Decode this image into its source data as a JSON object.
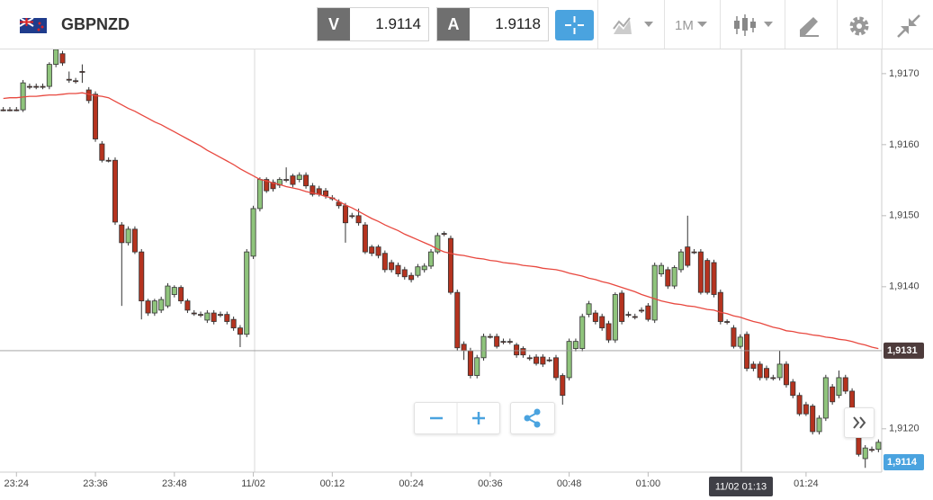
{
  "toolbar": {
    "symbol": "GBPNZD",
    "sell": {
      "label": "V",
      "price": "1.9114"
    },
    "buy": {
      "label": "A",
      "price": "1.9118"
    },
    "timeframe": "1M"
  },
  "chart_data": {
    "type": "candlestick",
    "categories": [
      null,
      null,
      "23:24",
      null,
      null,
      null,
      null,
      null,
      null,
      null,
      null,
      null,
      null,
      null,
      "23:36",
      null,
      null,
      null,
      null,
      null,
      null,
      null,
      null,
      null,
      null,
      null,
      "23:48",
      null,
      null,
      null,
      null,
      null,
      null,
      null,
      null,
      null,
      null,
      null,
      "11/02",
      null,
      null,
      null,
      null,
      null,
      null,
      null,
      null,
      null,
      null,
      null,
      "00:12",
      null,
      null,
      null,
      null,
      null,
      null,
      null,
      null,
      null,
      null,
      null,
      "00:24",
      null,
      null,
      null,
      null,
      null,
      null,
      null,
      null,
      null,
      null,
      null,
      "00:36",
      null,
      null,
      null,
      null,
      null,
      null,
      null,
      null,
      null,
      null,
      null,
      "00:48",
      null,
      null,
      null,
      null,
      null,
      null,
      null,
      null,
      null,
      null,
      null,
      "01:00",
      null,
      null,
      null,
      null,
      null,
      null,
      null,
      null,
      null,
      null,
      null,
      null,
      null,
      null,
      null,
      null,
      null,
      null,
      null,
      null,
      null,
      null,
      null,
      "01:24",
      null,
      null,
      null,
      null,
      null,
      null,
      null,
      null,
      null,
      null,
      null
    ],
    "open": [
      1.91649,
      1.91649,
      1.91649,
      1.91649,
      1.91682,
      1.91682,
      1.91682,
      1.91682,
      1.91713,
      1.91728,
      1.91692,
      1.9169,
      1.91703,
      1.91677,
      1.91671,
      1.91601,
      1.91578,
      1.91578,
      1.91487,
      1.91462,
      1.91481,
      1.91449,
      1.9138,
      1.91363,
      1.91367,
      1.91373,
      1.91389,
      1.91399,
      1.9138,
      1.91363,
      1.91361,
      1.91353,
      1.91363,
      1.91361,
      1.91361,
      1.91354,
      1.91342,
      1.91333,
      1.91443,
      1.9151,
      1.91551,
      1.91547,
      1.91543,
      1.91551,
      1.91556,
      1.91551,
      1.91557,
      1.91542,
      1.91538,
      1.91535,
      1.91525,
      1.91519,
      1.91514,
      1.915,
      1.915,
      1.91487,
      1.91456,
      1.91456,
      1.91447,
      1.91434,
      1.9143,
      1.91424,
      1.91416,
      1.91416,
      1.91424,
      1.91429,
      1.91449,
      1.91475,
      1.91468,
      1.91392,
      1.91319,
      1.9131,
      1.91275,
      1.913,
      1.9133,
      1.9133,
      1.91323,
      1.91323,
      1.91318,
      1.91313,
      1.913,
      1.91301,
      1.91301,
      1.91297,
      1.913,
      1.91275,
      1.91272,
      1.91313,
      1.91313,
      1.91361,
      1.91363,
      1.91358,
      1.91348,
      1.91325,
      1.91391,
      1.91361,
      1.91358,
      1.91367,
      1.91373,
      1.91353,
      1.91418,
      1.91424,
      1.91401,
      1.91424,
      1.91456,
      1.91449,
      1.91449,
      1.91437,
      1.91434,
      1.91392,
      1.91351,
      1.91342,
      1.91316,
      1.91333,
      1.91291,
      1.91291,
      1.91285,
      1.91272,
      1.91272,
      1.91291,
      1.91266,
      1.91247,
      1.91234,
      1.91232,
      1.91196,
      1.91215,
      1.91259,
      1.91247,
      1.91272,
      1.91253,
      1.91199,
      1.91158,
      1.91171,
      1.91171
    ],
    "high": [
      1.91653,
      1.91653,
      1.91653,
      1.91691,
      1.91686,
      1.91686,
      1.91686,
      1.91716,
      1.91738,
      1.91732,
      1.91703,
      1.91694,
      1.91713,
      1.91681,
      1.91675,
      1.91605,
      1.91582,
      1.91582,
      1.91491,
      1.91485,
      1.91485,
      1.91453,
      1.91383,
      1.91383,
      1.91386,
      1.91405,
      1.91402,
      1.91402,
      1.91383,
      1.91367,
      1.91365,
      1.91367,
      1.91367,
      1.91365,
      1.91365,
      1.91358,
      1.91346,
      1.91453,
      1.91514,
      1.91554,
      1.91554,
      1.91551,
      1.91554,
      1.91568,
      1.91559,
      1.91561,
      1.91561,
      1.91546,
      1.91542,
      1.91539,
      1.91529,
      1.91523,
      1.91518,
      1.91504,
      1.9151,
      1.91491,
      1.91459,
      1.91459,
      1.91451,
      1.91438,
      1.91434,
      1.91428,
      1.9142,
      1.91432,
      1.91433,
      1.91453,
      1.91476,
      1.91478,
      1.91472,
      1.91396,
      1.91323,
      1.91314,
      1.91304,
      1.91334,
      1.91334,
      1.91334,
      1.91327,
      1.91327,
      1.91321,
      1.91316,
      1.91304,
      1.91305,
      1.91305,
      1.91301,
      1.91304,
      1.91278,
      1.91327,
      1.91327,
      1.91362,
      1.9138,
      1.91367,
      1.91362,
      1.91352,
      1.91392,
      1.91395,
      1.91365,
      1.91362,
      1.91371,
      1.91377,
      1.91434,
      1.91434,
      1.91428,
      1.9143,
      1.91453,
      1.915,
      1.91453,
      1.91453,
      1.9144,
      1.91438,
      1.91396,
      1.91354,
      1.91346,
      1.91333,
      1.91337,
      1.91295,
      1.91295,
      1.91289,
      1.91276,
      1.9131,
      1.91295,
      1.9127,
      1.91251,
      1.91238,
      1.91235,
      1.91219,
      1.91276,
      1.91263,
      1.91282,
      1.91276,
      1.91257,
      1.91202,
      1.91177,
      1.91175,
      1.91185
    ],
    "low": [
      1.91647,
      1.91647,
      1.91647,
      1.91646,
      1.91678,
      1.91678,
      1.91678,
      1.91678,
      1.91709,
      1.91711,
      1.91687,
      1.91686,
      1.91687,
      1.91658,
      1.91604,
      1.91575,
      1.91575,
      1.91487,
      1.91373,
      1.91458,
      1.91446,
      1.91354,
      1.91359,
      1.91359,
      1.91363,
      1.9137,
      1.91385,
      1.91376,
      1.91363,
      1.91359,
      1.91357,
      1.91349,
      1.91347,
      1.91357,
      1.91347,
      1.91338,
      1.91315,
      1.91329,
      1.91439,
      1.91506,
      1.91532,
      1.91534,
      1.91539,
      1.91547,
      1.9154,
      1.91547,
      1.91538,
      1.91527,
      1.91527,
      1.91524,
      1.91521,
      1.9151,
      1.91462,
      1.91496,
      1.91486,
      1.91446,
      1.91443,
      1.9144,
      1.9142,
      1.9142,
      1.91414,
      1.9141,
      1.91406,
      1.91413,
      1.9142,
      1.91425,
      1.91446,
      1.91471,
      1.91389,
      1.9131,
      1.91297,
      1.91271,
      1.91271,
      1.91296,
      1.91327,
      1.91313,
      1.91319,
      1.91319,
      1.913,
      1.913,
      1.91296,
      1.91289,
      1.91287,
      1.91294,
      1.91268,
      1.91234,
      1.91268,
      1.91309,
      1.91309,
      1.91357,
      1.91347,
      1.91338,
      1.91321,
      1.91321,
      1.91347,
      1.91357,
      1.91354,
      1.91363,
      1.91351,
      1.91349,
      1.91414,
      1.91397,
      1.91397,
      1.9142,
      1.91427,
      1.91446,
      1.91389,
      1.91389,
      1.91385,
      1.91347,
      1.91347,
      1.91313,
      1.91313,
      1.91281,
      1.91281,
      1.91268,
      1.91268,
      1.91268,
      1.91268,
      1.91258,
      1.91243,
      1.91218,
      1.91218,
      1.91192,
      1.91192,
      1.91211,
      1.91234,
      1.91243,
      1.91249,
      1.91195,
      1.91161,
      1.91145,
      1.91167,
      1.91167
    ],
    "close": [
      1.91649,
      1.91649,
      1.91649,
      1.91687,
      1.91682,
      1.91682,
      1.91682,
      1.91713,
      1.91734,
      1.91715,
      1.91692,
      1.9169,
      1.91703,
      1.91662,
      1.91608,
      1.91578,
      1.91578,
      1.91491,
      1.91462,
      1.91481,
      1.91449,
      1.9138,
      1.91363,
      1.9138,
      1.91382,
      1.91401,
      1.91399,
      1.9138,
      1.91367,
      1.91363,
      1.91361,
      1.91363,
      1.91351,
      1.91361,
      1.91351,
      1.91342,
      1.91333,
      1.91449,
      1.9151,
      1.91551,
      1.91535,
      1.91538,
      1.91551,
      1.91551,
      1.91544,
      1.91557,
      1.91542,
      1.9153,
      1.9153,
      1.91528,
      1.91525,
      1.91514,
      1.9149,
      1.915,
      1.9149,
      1.91449,
      1.91447,
      1.91444,
      1.91424,
      1.91424,
      1.91418,
      1.91414,
      1.9141,
      1.91428,
      1.91429,
      1.91449,
      1.91472,
      1.91475,
      1.91392,
      1.91314,
      1.9131,
      1.91275,
      1.913,
      1.9133,
      1.9133,
      1.91316,
      1.91323,
      1.91323,
      1.91304,
      1.91304,
      1.913,
      1.91292,
      1.91291,
      1.91297,
      1.91272,
      1.91247,
      1.91323,
      1.91323,
      1.91358,
      1.91376,
      1.91351,
      1.91342,
      1.91325,
      1.91389,
      1.91351,
      1.91361,
      1.91358,
      1.91367,
      1.91354,
      1.9143,
      1.9143,
      1.91401,
      1.91427,
      1.91449,
      1.9143,
      1.91449,
      1.91392,
      1.91392,
      1.91389,
      1.91351,
      1.91351,
      1.91316,
      1.91329,
      1.91285,
      1.91285,
      1.91272,
      1.91272,
      1.91272,
      1.91291,
      1.91262,
      1.91247,
      1.91221,
      1.91221,
      1.91196,
      1.91215,
      1.91272,
      1.91238,
      1.91272,
      1.91253,
      1.91199,
      1.91164,
      1.91173,
      1.91171,
      1.91181
    ],
    "moving_average": {
      "color": "#e8483f",
      "values": [
        1.91665,
        1.91666,
        1.91666,
        1.91667,
        1.91668,
        1.91668,
        1.91669,
        1.9167,
        1.9167,
        1.91671,
        1.91672,
        1.91672,
        1.91673,
        1.91671,
        1.91669,
        1.91668,
        1.91666,
        1.91661,
        1.91656,
        1.91651,
        1.91647,
        1.91642,
        1.91637,
        1.91632,
        1.91628,
        1.91623,
        1.91618,
        1.91613,
        1.91608,
        1.91603,
        1.91598,
        1.91592,
        1.91587,
        1.91582,
        1.91577,
        1.91572,
        1.91566,
        1.91561,
        1.91556,
        1.91551,
        1.91549,
        1.91546,
        1.91544,
        1.91541,
        1.91539,
        1.91537,
        1.91534,
        1.91532,
        1.9153,
        1.91527,
        1.91525,
        1.9152,
        1.91515,
        1.91511,
        1.91506,
        1.91501,
        1.91496,
        1.91492,
        1.91487,
        1.91483,
        1.91479,
        1.91474,
        1.9147,
        1.91466,
        1.91462,
        1.91458,
        1.91453,
        1.91449,
        1.91447,
        1.91445,
        1.91444,
        1.91442,
        1.9144,
        1.91439,
        1.91437,
        1.91436,
        1.91434,
        1.91433,
        1.91432,
        1.9143,
        1.91429,
        1.91428,
        1.91426,
        1.91425,
        1.91424,
        1.91422,
        1.91419,
        1.91417,
        1.91415,
        1.91412,
        1.9141,
        1.91407,
        1.91405,
        1.91402,
        1.91399,
        1.91396,
        1.91393,
        1.91389,
        1.91386,
        1.91383,
        1.9138,
        1.91378,
        1.91376,
        1.91375,
        1.91373,
        1.91372,
        1.9137,
        1.91368,
        1.91367,
        1.91364,
        1.91362,
        1.91359,
        1.91357,
        1.91354,
        1.91351,
        1.91349,
        1.91346,
        1.91343,
        1.91341,
        1.91338,
        1.91337,
        1.91335,
        1.91334,
        1.91332,
        1.91331,
        1.91329,
        1.91328,
        1.91326,
        1.91325,
        1.91323,
        1.9132,
        1.91318,
        1.91315,
        1.91313
      ]
    },
    "up_color": "#8fc47c",
    "down_color": "#b5331f",
    "ylim": [
      1.91139,
      1.91734
    ],
    "yticks": [
      {
        "value": 1.917,
        "label": "1,9170"
      },
      {
        "value": 1.916,
        "label": "1,9160"
      },
      {
        "value": 1.915,
        "label": "1,9150"
      },
      {
        "value": 1.914,
        "label": "1,9140"
      },
      {
        "value": 1.912,
        "label": "1,9120"
      }
    ],
    "price_line": {
      "value": 1.9131,
      "label": "1,9131"
    },
    "last_price": {
      "value": 1.9114,
      "label": "1,9114"
    },
    "crosshair_label": "11/02 01:13"
  }
}
